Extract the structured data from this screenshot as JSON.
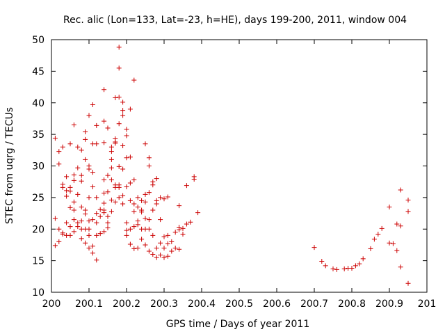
{
  "chart_data": {
    "type": "scatter",
    "title": "Rec. alic (Lon=133, Lat=-23, h=HE), days 199-200, 2011, window 004",
    "xlabel": "GPS time / Days of year 2011",
    "ylabel": "STEC from uqrg / TECUs",
    "xlim": [
      200,
      201
    ],
    "ylim": [
      10,
      50
    ],
    "x_ticks": [
      200,
      200.1,
      200.2,
      200.3,
      200.4,
      200.5,
      200.6,
      200.7,
      200.8,
      200.9,
      201
    ],
    "x_tick_labels": [
      "200",
      "200.1",
      "200.2",
      "200.3",
      "200.4",
      "200.5",
      "200.6",
      "200.7",
      "200.8",
      "200.9",
      "201"
    ],
    "y_ticks": [
      10,
      15,
      20,
      25,
      30,
      35,
      40,
      45,
      50
    ],
    "y_tick_labels": [
      "10",
      "15",
      "20",
      "25",
      "30",
      "35",
      "40",
      "45",
      "50"
    ],
    "marker": "plus",
    "series_color": "#cc0000",
    "points": [
      [
        200.01,
        34.4
      ],
      [
        200.01,
        21.7
      ],
      [
        200.01,
        17.4
      ],
      [
        200.02,
        32.3
      ],
      [
        200.02,
        30.3
      ],
      [
        200.02,
        20.0
      ],
      [
        200.02,
        18.0
      ],
      [
        200.03,
        33.0
      ],
      [
        200.03,
        27.1
      ],
      [
        200.03,
        26.6
      ],
      [
        200.03,
        19.4
      ],
      [
        200.03,
        19.2
      ],
      [
        200.04,
        28.3
      ],
      [
        200.04,
        26.1
      ],
      [
        200.04,
        25.2
      ],
      [
        200.04,
        21.0
      ],
      [
        200.04,
        19.0
      ],
      [
        200.05,
        33.5
      ],
      [
        200.05,
        26.6
      ],
      [
        200.05,
        26.0
      ],
      [
        200.05,
        23.4
      ],
      [
        200.05,
        20.4
      ],
      [
        200.05,
        19.0
      ],
      [
        200.06,
        36.5
      ],
      [
        200.06,
        28.6
      ],
      [
        200.06,
        27.7
      ],
      [
        200.06,
        24.3
      ],
      [
        200.06,
        23.0
      ],
      [
        200.06,
        21.5
      ],
      [
        200.06,
        19.6
      ],
      [
        200.07,
        33.0
      ],
      [
        200.07,
        29.7
      ],
      [
        200.07,
        25.5
      ],
      [
        200.07,
        21.0
      ],
      [
        200.07,
        20.4
      ],
      [
        200.08,
        32.5
      ],
      [
        200.08,
        28.5
      ],
      [
        200.08,
        27.6
      ],
      [
        200.08,
        23.5
      ],
      [
        200.08,
        21.3
      ],
      [
        200.08,
        20.0
      ],
      [
        200.08,
        18.5
      ],
      [
        200.09,
        35.4
      ],
      [
        200.09,
        34.2
      ],
      [
        200.09,
        31.0
      ],
      [
        200.09,
        23.0
      ],
      [
        200.09,
        22.4
      ],
      [
        200.09,
        20.0
      ],
      [
        200.09,
        17.8
      ],
      [
        200.1,
        38.0
      ],
      [
        200.1,
        30.0
      ],
      [
        200.1,
        29.5
      ],
      [
        200.1,
        25.0
      ],
      [
        200.1,
        21.3
      ],
      [
        200.1,
        20.0
      ],
      [
        200.1,
        19.0
      ],
      [
        200.1,
        17.0
      ],
      [
        200.11,
        39.7
      ],
      [
        200.11,
        33.5
      ],
      [
        200.11,
        29.0
      ],
      [
        200.11,
        26.7
      ],
      [
        200.11,
        21.5
      ],
      [
        200.11,
        17.3
      ],
      [
        200.11,
        16.2
      ],
      [
        200.12,
        36.4
      ],
      [
        200.12,
        33.5
      ],
      [
        200.12,
        25.0
      ],
      [
        200.12,
        22.5
      ],
      [
        200.12,
        21.0
      ],
      [
        200.12,
        19.0
      ],
      [
        200.12,
        15.1
      ],
      [
        200.13,
        23.1
      ],
      [
        200.13,
        22.0
      ],
      [
        200.13,
        19.3
      ],
      [
        200.14,
        42.1
      ],
      [
        200.14,
        37.1
      ],
      [
        200.14,
        33.7
      ],
      [
        200.14,
        27.8
      ],
      [
        200.14,
        25.7
      ],
      [
        200.14,
        24.1
      ],
      [
        200.14,
        23.0
      ],
      [
        200.14,
        22.6
      ],
      [
        200.14,
        19.6
      ],
      [
        200.15,
        36.0
      ],
      [
        200.15,
        28.5
      ],
      [
        200.15,
        25.9
      ],
      [
        200.15,
        22.0
      ],
      [
        200.15,
        21.0
      ],
      [
        200.15,
        20.2
      ],
      [
        200.16,
        33.0
      ],
      [
        200.16,
        32.3
      ],
      [
        200.16,
        31.0
      ],
      [
        200.16,
        29.7
      ],
      [
        200.16,
        27.8
      ],
      [
        200.16,
        24.6
      ],
      [
        200.16,
        22.8
      ],
      [
        200.17,
        40.8
      ],
      [
        200.17,
        34.3
      ],
      [
        200.17,
        33.8
      ],
      [
        200.17,
        33.6
      ],
      [
        200.17,
        27.0
      ],
      [
        200.17,
        26.6
      ],
      [
        200.17,
        24.3
      ],
      [
        200.18,
        48.8
      ],
      [
        200.18,
        45.5
      ],
      [
        200.18,
        40.9
      ],
      [
        200.18,
        36.7
      ],
      [
        200.18,
        29.9
      ],
      [
        200.18,
        27.0
      ],
      [
        200.18,
        26.6
      ],
      [
        200.18,
        25.0
      ],
      [
        200.19,
        40.1
      ],
      [
        200.19,
        38.8
      ],
      [
        200.19,
        38.0
      ],
      [
        200.19,
        33.2
      ],
      [
        200.19,
        29.5
      ],
      [
        200.19,
        25.3
      ],
      [
        200.19,
        24.0
      ],
      [
        200.2,
        35.8
      ],
      [
        200.2,
        34.8
      ],
      [
        200.2,
        31.3
      ],
      [
        200.2,
        26.7
      ],
      [
        200.2,
        21.0
      ],
      [
        200.2,
        19.8
      ],
      [
        200.2,
        19.0
      ],
      [
        200.21,
        39.0
      ],
      [
        200.21,
        31.4
      ],
      [
        200.21,
        27.3
      ],
      [
        200.21,
        24.5
      ],
      [
        200.21,
        20.0
      ],
      [
        200.21,
        17.6
      ],
      [
        200.22,
        43.6
      ],
      [
        200.22,
        27.8
      ],
      [
        200.22,
        24.0
      ],
      [
        200.22,
        22.8
      ],
      [
        200.22,
        20.4
      ],
      [
        200.22,
        16.9
      ],
      [
        200.23,
        25.0
      ],
      [
        200.23,
        23.5
      ],
      [
        200.23,
        21.3
      ],
      [
        200.23,
        20.7
      ],
      [
        200.23,
        17.0
      ],
      [
        200.24,
        24.5
      ],
      [
        200.24,
        23.0
      ],
      [
        200.24,
        22.7
      ],
      [
        200.24,
        20.0
      ],
      [
        200.24,
        18.4
      ],
      [
        200.25,
        33.5
      ],
      [
        200.25,
        25.5
      ],
      [
        200.25,
        24.3
      ],
      [
        200.25,
        21.7
      ],
      [
        200.25,
        20.0
      ],
      [
        200.25,
        17.5
      ],
      [
        200.26,
        31.3
      ],
      [
        200.26,
        30.0
      ],
      [
        200.26,
        25.8
      ],
      [
        200.26,
        21.5
      ],
      [
        200.26,
        20.0
      ],
      [
        200.26,
        16.5
      ],
      [
        200.27,
        27.5
      ],
      [
        200.27,
        27.0
      ],
      [
        200.27,
        23.0
      ],
      [
        200.27,
        19.0
      ],
      [
        200.27,
        16.0
      ],
      [
        200.28,
        28.0
      ],
      [
        200.28,
        24.5
      ],
      [
        200.28,
        24.0
      ],
      [
        200.28,
        17.0
      ],
      [
        200.28,
        15.5
      ],
      [
        200.29,
        25.0
      ],
      [
        200.29,
        21.5
      ],
      [
        200.29,
        17.8
      ],
      [
        200.29,
        15.9
      ],
      [
        200.3,
        24.8
      ],
      [
        200.3,
        18.8
      ],
      [
        200.3,
        17.0
      ],
      [
        200.3,
        15.5
      ],
      [
        200.31,
        25.1
      ],
      [
        200.31,
        19.0
      ],
      [
        200.31,
        17.7
      ],
      [
        200.31,
        15.7
      ],
      [
        200.32,
        18.0
      ],
      [
        200.32,
        16.5
      ],
      [
        200.33,
        19.5
      ],
      [
        200.33,
        17.0
      ],
      [
        200.34,
        23.7
      ],
      [
        200.34,
        20.3
      ],
      [
        200.34,
        19.9
      ],
      [
        200.34,
        16.8
      ],
      [
        200.35,
        20.1
      ],
      [
        200.35,
        19.2
      ],
      [
        200.36,
        26.9
      ],
      [
        200.36,
        20.8
      ],
      [
        200.37,
        21.1
      ],
      [
        200.38,
        27.9
      ],
      [
        200.38,
        28.3
      ],
      [
        200.39,
        22.6
      ],
      [
        200.7,
        17.1
      ],
      [
        200.72,
        14.9
      ],
      [
        200.73,
        14.2
      ],
      [
        200.75,
        13.7
      ],
      [
        200.76,
        13.6
      ],
      [
        200.78,
        13.7
      ],
      [
        200.79,
        13.8
      ],
      [
        200.8,
        13.8
      ],
      [
        200.81,
        14.2
      ],
      [
        200.82,
        14.5
      ],
      [
        200.83,
        15.3
      ],
      [
        200.85,
        16.9
      ],
      [
        200.86,
        18.4
      ],
      [
        200.87,
        19.2
      ],
      [
        200.88,
        20.1
      ],
      [
        200.9,
        23.5
      ],
      [
        200.9,
        17.8
      ],
      [
        200.91,
        17.7
      ],
      [
        200.92,
        20.8
      ],
      [
        200.92,
        16.6
      ],
      [
        200.93,
        20.5
      ],
      [
        200.93,
        26.2
      ],
      [
        200.93,
        14.0
      ],
      [
        200.95,
        24.6
      ],
      [
        200.95,
        22.8
      ],
      [
        200.95,
        11.4
      ]
    ]
  }
}
